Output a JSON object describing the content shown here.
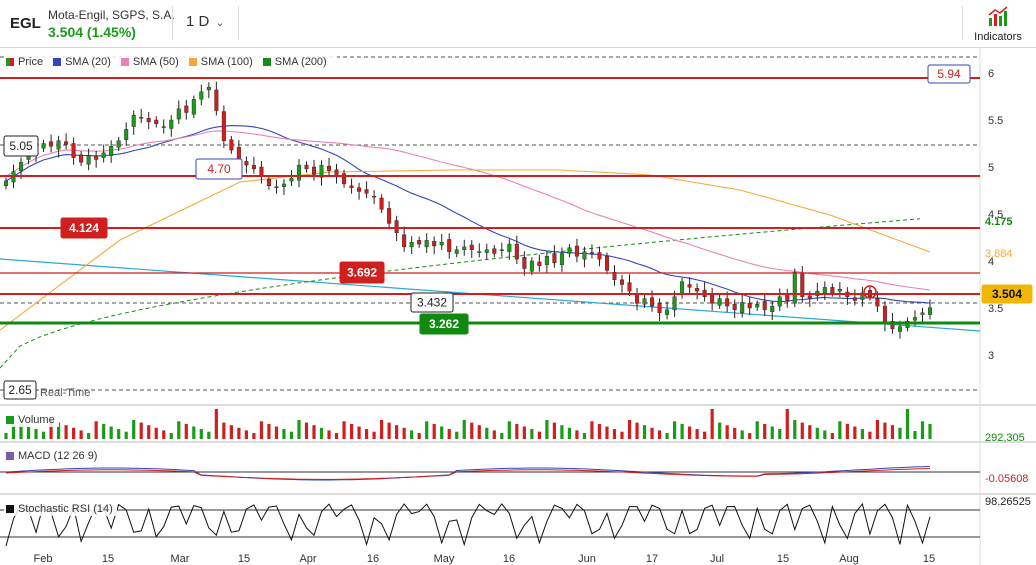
{
  "header": {
    "symbol": "EGL",
    "company": "Mota-Engil, SGPS, S.A.",
    "price_change": "3.504 (1.45%)",
    "timeframe": "1 D",
    "indicators_label": "Indicators",
    "indicators_icon": "indicators-chart-icon"
  },
  "legend": {
    "price": {
      "label": "Price",
      "color": "#1a9c1a"
    },
    "sma20": {
      "label": "SMA (20)",
      "color": "#3346b8"
    },
    "sma50": {
      "label": "SMA (50)",
      "color": "#e884b8"
    },
    "sma100": {
      "label": "SMA (100)",
      "color": "#f2a93b"
    },
    "sma200": {
      "label": "SMA (200)",
      "color": "#1a8a1a"
    },
    "volume": {
      "label": "Volume",
      "color": "#1a9c1a"
    },
    "macd": {
      "label": "MACD (12 26 9)",
      "color": "#7a5ca8"
    },
    "stoch": {
      "label": "Stochastic RSI (14)",
      "color": "#111111"
    }
  },
  "colors": {
    "up": "#1a9c1a",
    "down": "#d11f1f",
    "hline_red": "#d11f1f",
    "hline_green": "#0f8a0f",
    "trend": "#2aa9d6",
    "grid_dashed": "#555555"
  },
  "realtime_label": "Real-Time",
  "chart_data": {
    "type": "candlestick",
    "period": "daily",
    "price_axis_ticks": [
      "6",
      "5.5",
      "5",
      "4.5",
      "4",
      "3.5",
      "3"
    ],
    "x_axis_labels": [
      "Feb",
      "15",
      "Mar",
      "15",
      "Apr",
      "16",
      "May",
      "16",
      "Jun",
      "17",
      "Jul",
      "15",
      "Aug",
      "15"
    ],
    "close": [
      4.85,
      4.95,
      5.05,
      5.15,
      5.2,
      5.25,
      5.22,
      5.28,
      5.24,
      5.1,
      5.05,
      5.12,
      5.08,
      5.15,
      5.22,
      5.28,
      5.4,
      5.55,
      5.52,
      5.48,
      5.46,
      5.42,
      5.5,
      5.62,
      5.58,
      5.72,
      5.8,
      5.85,
      5.6,
      5.28,
      5.18,
      5.08,
      5.02,
      4.98,
      4.9,
      4.8,
      4.78,
      4.82,
      4.88,
      5.02,
      4.98,
      4.92,
      5.02,
      4.96,
      4.9,
      4.82,
      4.78,
      4.74,
      4.72,
      4.68,
      4.55,
      4.4,
      4.3,
      4.15,
      4.2,
      4.18,
      4.22,
      4.16,
      4.2,
      4.1,
      4.12,
      4.15,
      4.12,
      4.1,
      4.12,
      4.08,
      4.12,
      4.18,
      4.02,
      3.92,
      4.0,
      3.95,
      4.05,
      3.98,
      4.08,
      4.14,
      4.05,
      4.1,
      4.08,
      4.02,
      3.9,
      3.8,
      3.75,
      3.68,
      3.55,
      3.6,
      3.52,
      3.45,
      3.48,
      3.62,
      3.78,
      3.72,
      3.68,
      3.62,
      3.55,
      3.6,
      3.52,
      3.48,
      3.56,
      3.5,
      3.54,
      3.48,
      3.52,
      3.62,
      3.58,
      3.88,
      3.62,
      3.6,
      3.68,
      3.72,
      3.66,
      3.7,
      3.62,
      3.58,
      3.66,
      3.62,
      3.52,
      3.34,
      3.28,
      3.3,
      3.36,
      3.4,
      3.45,
      3.504
    ],
    "key_levels": [
      5.94,
      4.7,
      4.124,
      3.692,
      3.504,
      3.432,
      3.262
    ],
    "price_labels": {
      "p594": "5.94",
      "p470": "4.70",
      "p4124": "4.124",
      "p3692": "3.692",
      "p3432": "3.432",
      "p3262": "3.262",
      "p505": "5.05",
      "p265": "2.65",
      "last": "3.504"
    },
    "sma_last_values": {
      "sma20": "4.175",
      "sma100": "3.884"
    },
    "volume_last": "292,305",
    "macd_last": "-0.05608",
    "stoch_rsi_last": "98.26525"
  }
}
